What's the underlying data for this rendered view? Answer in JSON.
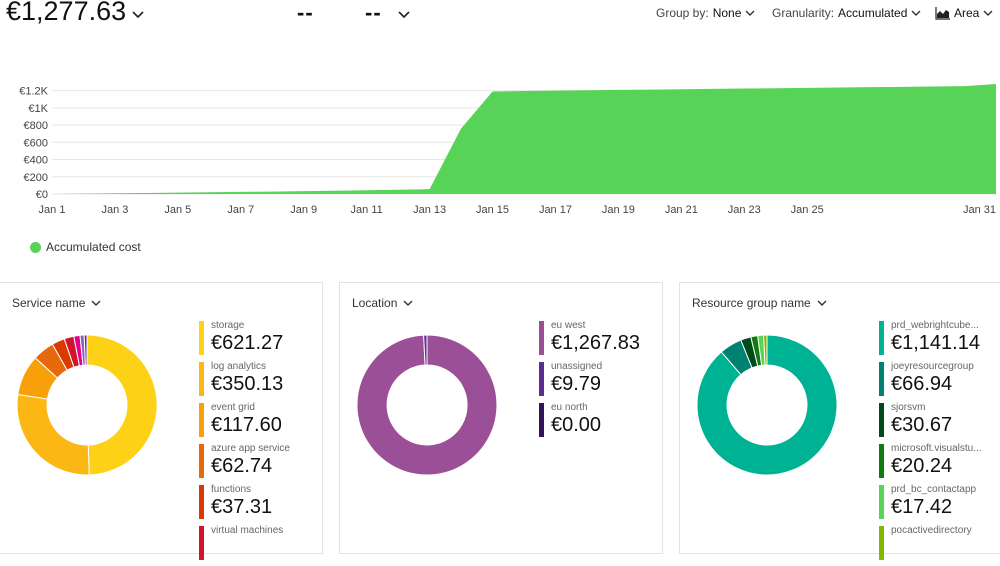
{
  "header": {
    "total": "€1,277.63",
    "kpi2": "--",
    "kpi3": "--",
    "group_by_label": "Group by:",
    "group_by_value": "None",
    "granularity_label": "Granularity:",
    "granularity_value": "Accumulated",
    "chart_type_label": "Area"
  },
  "chart_data": {
    "type": "area",
    "x": [
      "Jan 1",
      "Jan 2",
      "Jan 3",
      "Jan 4",
      "Jan 5",
      "Jan 6",
      "Jan 7",
      "Jan 8",
      "Jan 9",
      "Jan 10",
      "Jan 11",
      "Jan 12",
      "Jan 13",
      "Jan 14",
      "Jan 15",
      "Jan 16",
      "Jan 17",
      "Jan 18",
      "Jan 19",
      "Jan 20",
      "Jan 21",
      "Jan 22",
      "Jan 23",
      "Jan 24",
      "Jan 25",
      "Jan 26",
      "Jan 27",
      "Jan 28",
      "Jan 29",
      "Jan 30",
      "Jan 31"
    ],
    "series": [
      {
        "name": "Accumulated cost",
        "color": "#57d457",
        "values": [
          0,
          4,
          8,
          12,
          16,
          20,
          24,
          28,
          33,
          38,
          44,
          50,
          56,
          760,
          1190,
          1195,
          1200,
          1204,
          1208,
          1212,
          1216,
          1220,
          1224,
          1228,
          1232,
          1236,
          1240,
          1244,
          1248,
          1252,
          1277
        ]
      }
    ],
    "x_tick_labels": [
      "Jan 1",
      "Jan 3",
      "Jan 5",
      "Jan 7",
      "Jan 9",
      "Jan 11",
      "Jan 13",
      "Jan 15",
      "Jan 17",
      "Jan 19",
      "Jan 21",
      "Jan 23",
      "Jan 25",
      "Jan 31"
    ],
    "y_ticks": [
      0,
      200,
      400,
      600,
      800,
      1000,
      1200
    ],
    "y_tick_labels": [
      "€0",
      "€200",
      "€400",
      "€600",
      "€800",
      "€1K",
      "€1.2K"
    ],
    "ylim": [
      0,
      1300
    ],
    "grid": true,
    "legend": "bottom-left"
  },
  "panels": [
    {
      "title": "Service name",
      "items": [
        {
          "name": "storage",
          "value": "€621.27",
          "amount": 621.27,
          "color": "#fcd116"
        },
        {
          "name": "log analytics",
          "value": "€350.13",
          "amount": 350.13,
          "color": "#fcb714"
        },
        {
          "name": "event grid",
          "value": "€117.60",
          "amount": 117.6,
          "color": "#f7a00a"
        },
        {
          "name": "azure app service",
          "value": "€62.74",
          "amount": 62.74,
          "color": "#e8690b"
        },
        {
          "name": "functions",
          "value": "€37.31",
          "amount": 37.31,
          "color": "#d83b01"
        },
        {
          "name": "virtual machines",
          "value": "",
          "amount": 28,
          "color": "#d0142c"
        },
        {
          "name": "",
          "value": "",
          "amount": 18,
          "color": "#e3008c"
        },
        {
          "name": "",
          "value": "",
          "amount": 12,
          "color": "#8764b8"
        },
        {
          "name": "",
          "value": "",
          "amount": 8,
          "color": "#5c2d91"
        }
      ]
    },
    {
      "title": "Location",
      "items": [
        {
          "name": "eu west",
          "value": "€1,267.83",
          "amount": 1267.83,
          "color": "#9b4f96"
        },
        {
          "name": "unassigned",
          "value": "€9.79",
          "amount": 9.79,
          "color": "#5c2d91"
        },
        {
          "name": "eu north",
          "value": "€0.00",
          "amount": 0,
          "color": "#32145a"
        }
      ]
    },
    {
      "title": "Resource group name",
      "items": [
        {
          "name": "prd_webrightcube...",
          "value": "€1,141.14",
          "amount": 1141.14,
          "color": "#00b294"
        },
        {
          "name": "joeyresourcegroup",
          "value": "€66.94",
          "amount": 66.94,
          "color": "#008272"
        },
        {
          "name": "sjorsvm",
          "value": "€30.67",
          "amount": 30.67,
          "color": "#004b1c"
        },
        {
          "name": "microsoft.visualstu...",
          "value": "€20.24",
          "amount": 20.24,
          "color": "#107c10"
        },
        {
          "name": "prd_bc_contactapp",
          "value": "€17.42",
          "amount": 17.42,
          "color": "#57d457"
        },
        {
          "name": "pocactivedirectory",
          "value": "",
          "amount": 10,
          "color": "#7fba00"
        }
      ]
    }
  ]
}
